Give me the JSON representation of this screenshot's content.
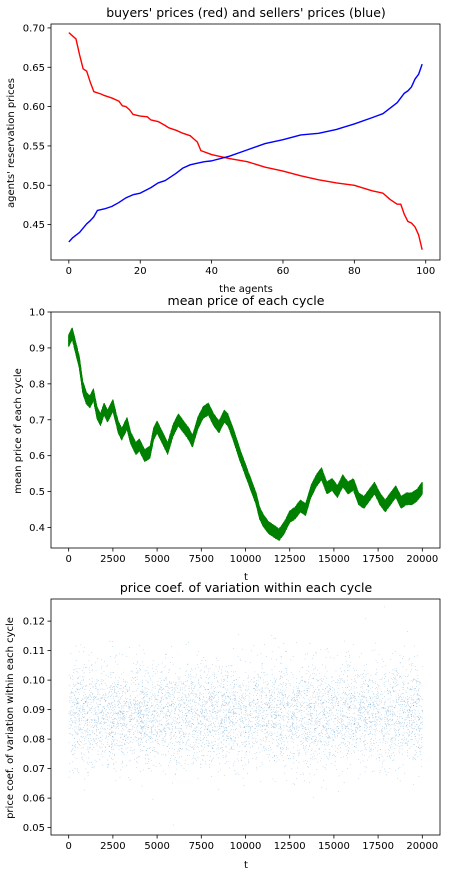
{
  "chart_data": [
    {
      "type": "line",
      "title": "buyers' prices (red) and sellers' prices (blue)",
      "xlabel": "the agents",
      "ylabel": "agents' reservation prices",
      "xlim": [
        -5,
        104
      ],
      "ylim": [
        0.405,
        0.705
      ],
      "xticks": [
        0,
        20,
        40,
        60,
        80,
        100
      ],
      "xtick_labels": [
        "0",
        "20",
        "40",
        "60",
        "80",
        "100"
      ],
      "yticks": [
        0.45,
        0.5,
        0.55,
        0.6,
        0.65,
        0.7
      ],
      "ytick_labels": [
        "0.45",
        "0.50",
        "0.55",
        "0.60",
        "0.65",
        "0.70"
      ],
      "grid": false,
      "series": [
        {
          "color": "#ff0000",
          "x": [
            0,
            2,
            3,
            4,
            5,
            6,
            7,
            9,
            10,
            12,
            14,
            15,
            16,
            17,
            18,
            20,
            22,
            23,
            25,
            27,
            28,
            30,
            32,
            34,
            35,
            36,
            37,
            40,
            42,
            45,
            50,
            55,
            60,
            65,
            70,
            75,
            80,
            85,
            88,
            90,
            92,
            93,
            94,
            95,
            96,
            97,
            98,
            99
          ],
          "y": [
            0.694,
            0.686,
            0.666,
            0.648,
            0.645,
            0.631,
            0.619,
            0.616,
            0.614,
            0.611,
            0.607,
            0.601,
            0.6,
            0.596,
            0.59,
            0.588,
            0.587,
            0.583,
            0.581,
            0.576,
            0.573,
            0.57,
            0.566,
            0.563,
            0.559,
            0.555,
            0.544,
            0.539,
            0.537,
            0.534,
            0.53,
            0.523,
            0.518,
            0.512,
            0.507,
            0.503,
            0.5,
            0.493,
            0.49,
            0.482,
            0.476,
            0.476,
            0.463,
            0.454,
            0.452,
            0.447,
            0.437,
            0.418
          ]
        },
        {
          "color": "#0000ff",
          "x": [
            0,
            1,
            3,
            5,
            6,
            7,
            8,
            10,
            12,
            14,
            16,
            18,
            20,
            23,
            25,
            27,
            30,
            32,
            34,
            36,
            38,
            40,
            45,
            50,
            55,
            60,
            65,
            70,
            75,
            80,
            85,
            88,
            90,
            92,
            93,
            94,
            95,
            96,
            97,
            98,
            99
          ],
          "y": [
            0.428,
            0.433,
            0.44,
            0.451,
            0.455,
            0.46,
            0.468,
            0.47,
            0.473,
            0.478,
            0.484,
            0.488,
            0.49,
            0.497,
            0.503,
            0.506,
            0.515,
            0.522,
            0.526,
            0.528,
            0.53,
            0.531,
            0.537,
            0.545,
            0.553,
            0.558,
            0.564,
            0.566,
            0.571,
            0.578,
            0.586,
            0.591,
            0.598,
            0.605,
            0.611,
            0.617,
            0.62,
            0.625,
            0.635,
            0.641,
            0.654
          ]
        }
      ]
    },
    {
      "type": "line",
      "title": "mean price of each cycle",
      "xlabel": "t",
      "ylabel": "mean price of each cycle",
      "xlim": [
        -1000,
        21000
      ],
      "ylim": [
        0.343,
        1.0
      ],
      "xticks": [
        0,
        2500,
        5000,
        7500,
        10000,
        12500,
        15000,
        17500,
        20000
      ],
      "xtick_labels": [
        "0",
        "2500",
        "5000",
        "7500",
        "10000",
        "12500",
        "15000",
        "17500",
        "20000"
      ],
      "yticks": [
        0.4,
        0.5,
        0.6,
        0.7,
        0.8,
        0.9,
        1.0
      ],
      "ytick_labels": [
        "0.4",
        "0.5",
        "0.6",
        "0.7",
        "0.8",
        "0.9",
        "1.0"
      ],
      "grid": false,
      "series": [
        {
          "color": "#008000",
          "band_halfwidth": 0.018,
          "x": [
            0,
            200,
            400,
            600,
            800,
            1000,
            1200,
            1400,
            1600,
            1800,
            2000,
            2200,
            2500,
            2800,
            3000,
            3300,
            3500,
            3800,
            4000,
            4300,
            4600,
            4800,
            5000,
            5300,
            5600,
            5900,
            6200,
            6500,
            6800,
            7000,
            7300,
            7600,
            7900,
            8200,
            8500,
            8800,
            9000,
            9300,
            9500,
            9700,
            10000,
            10300,
            10600,
            10800,
            11000,
            11300,
            11600,
            11900,
            12200,
            12500,
            12800,
            13100,
            13400,
            13700,
            14000,
            14300,
            14600,
            14900,
            15200,
            15500,
            15800,
            16100,
            16400,
            16700,
            17000,
            17300,
            17600,
            17900,
            18200,
            18500,
            18800,
            19100,
            19400,
            19700,
            20000
          ],
          "y": [
            0.92,
            0.94,
            0.9,
            0.86,
            0.79,
            0.76,
            0.75,
            0.77,
            0.72,
            0.7,
            0.73,
            0.71,
            0.74,
            0.68,
            0.66,
            0.69,
            0.65,
            0.62,
            0.63,
            0.6,
            0.61,
            0.66,
            0.68,
            0.65,
            0.62,
            0.67,
            0.7,
            0.68,
            0.66,
            0.64,
            0.69,
            0.72,
            0.73,
            0.7,
            0.68,
            0.71,
            0.7,
            0.66,
            0.63,
            0.6,
            0.56,
            0.52,
            0.48,
            0.44,
            0.42,
            0.4,
            0.39,
            0.38,
            0.4,
            0.43,
            0.44,
            0.46,
            0.45,
            0.5,
            0.53,
            0.55,
            0.51,
            0.52,
            0.5,
            0.53,
            0.51,
            0.52,
            0.48,
            0.47,
            0.49,
            0.51,
            0.48,
            0.46,
            0.48,
            0.5,
            0.47,
            0.48,
            0.48,
            0.49,
            0.51
          ]
        }
      ]
    },
    {
      "type": "scatter",
      "title": "price coef. of variation within each cycle",
      "xlabel": "t",
      "ylabel": "price coef. of variation within each cycle",
      "xlim": [
        -1000,
        21000
      ],
      "ylim": [
        0.0475,
        0.1275
      ],
      "xticks": [
        0,
        2500,
        5000,
        7500,
        10000,
        12500,
        15000,
        17500,
        20000
      ],
      "xtick_labels": [
        "0",
        "2500",
        "5000",
        "7500",
        "10000",
        "12500",
        "15000",
        "17500",
        "20000"
      ],
      "yticks": [
        0.05,
        0.06,
        0.07,
        0.08,
        0.09,
        0.1,
        0.11,
        0.12
      ],
      "ytick_labels": [
        "0.05",
        "0.06",
        "0.07",
        "0.08",
        "0.09",
        "0.10",
        "0.11",
        "0.12"
      ],
      "grid": false,
      "series": [
        {
          "color": "#1f77b4",
          "marker_size": 0.6,
          "x_range": [
            0,
            20000
          ],
          "center": 0.0885,
          "spread": 0.0085,
          "y_range": [
            0.051,
            0.125
          ],
          "count": 20000
        }
      ]
    }
  ]
}
